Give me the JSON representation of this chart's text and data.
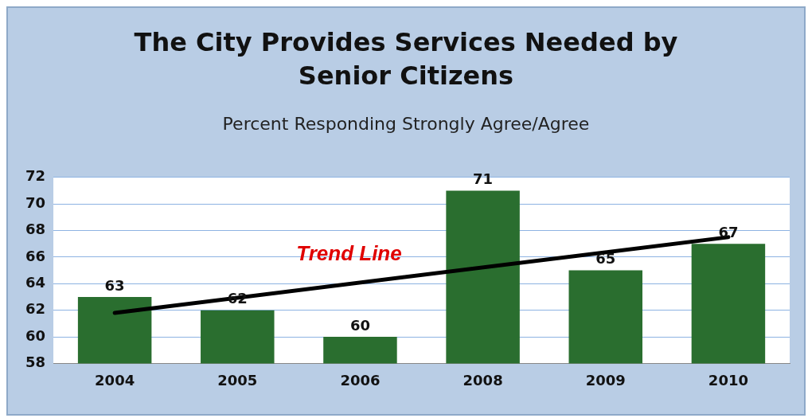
{
  "chart_data": {
    "type": "bar",
    "title": "The City Provides Services Needed by Senior Citizens",
    "subtitle": "Percent Responding Strongly Agree/Agree",
    "categories": [
      "2004",
      "2005",
      "2006",
      "2008",
      "2009",
      "2010"
    ],
    "series": [
      {
        "color": "#2a6e2f",
        "values": [
          63,
          62,
          60,
          71,
          65,
          67
        ],
        "value_labels": [
          "63",
          "62",
          "60",
          "71",
          "65",
          "67"
        ]
      },
      {
        "type": "line",
        "color": "#000000",
        "values": [
          61.8,
          null,
          null,
          null,
          null,
          67.5
        ],
        "marker": "none"
      }
    ],
    "ylim": [
      58,
      72
    ],
    "yticks": [
      58,
      60,
      62,
      64,
      66,
      68,
      70,
      72
    ],
    "grid": "y",
    "legend": false,
    "annotations": [
      "Trend Line"
    ]
  }
}
